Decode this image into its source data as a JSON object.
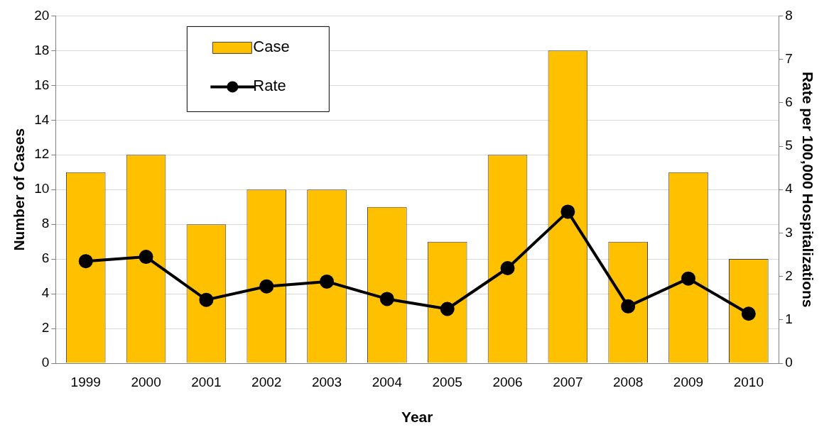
{
  "chart_data": {
    "type": "bar",
    "xlabel": "Year",
    "ylabel": "Number of Cases",
    "y2label": "Rate per 100,000 Hospitalizations",
    "categories": [
      "1999",
      "2000",
      "2001",
      "2002",
      "2003",
      "2004",
      "2005",
      "2006",
      "2007",
      "2008",
      "2009",
      "2010"
    ],
    "series": [
      {
        "name": "Case",
        "color": "#ffc000",
        "values": [
          11,
          12,
          8,
          10,
          10,
          9,
          7,
          12,
          18,
          7,
          11,
          6
        ]
      },
      {
        "name": "Rate",
        "type": "line",
        "axis": "y2",
        "color": "#000000",
        "marker": "circle",
        "values": [
          2.35,
          2.45,
          1.46,
          1.77,
          1.88,
          1.48,
          1.25,
          2.19,
          3.49,
          1.31,
          1.95,
          1.14
        ]
      }
    ],
    "ylim": [
      0,
      20
    ],
    "yticks": [
      0,
      2,
      4,
      6,
      8,
      10,
      12,
      14,
      16,
      18,
      20
    ],
    "y2lim": [
      0,
      8
    ],
    "y2ticks": [
      0,
      1,
      2,
      3,
      4,
      5,
      6,
      7,
      8
    ],
    "grid": "y",
    "legend": "top left"
  }
}
